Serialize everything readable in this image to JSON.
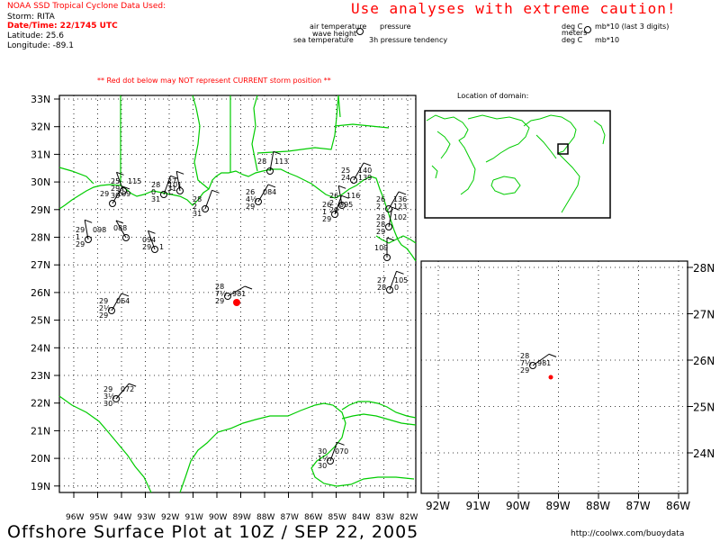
{
  "header": {
    "source_title": "NOAA SSD Tropical Cyclone Data Used:",
    "storm_line": "Storm: RITA",
    "datetime_line": "Date/Time: 22/1745 UTC",
    "latitude_line": "Latitude: 25.6",
    "longitude_line": "Longitude: -89.1",
    "caution": "Use analyses with extreme caution!",
    "red_dot_note": "** Red dot below may NOT represent CURRENT storm position **",
    "location_label": "Location of domain:",
    "footer_title": "Offshore Surface Plot at 10Z / SEP 22, 2005",
    "footer_url": "http://coolwx.com/buoydata"
  },
  "legend": {
    "air_temperature": "air temperature",
    "pressure": "pressure",
    "wave_height": "wave height",
    "sea_temperature": "sea temperature",
    "pressure_tendency": "3h pressure tendency",
    "deg_c_1": "deg C",
    "mb_note": "mb*10 (last 3 digits)",
    "meters": "meters",
    "deg_c_2": "deg C",
    "mb10": "mb*10"
  },
  "main_map": {
    "lat_labels": [
      "33N",
      "32N",
      "31N",
      "30N",
      "29N",
      "28N",
      "27N",
      "26N",
      "25N",
      "24N",
      "23N",
      "22N",
      "21N",
      "20N",
      "19N"
    ],
    "lon_labels": [
      "96W",
      "95W",
      "94W",
      "93W",
      "92W",
      "91W",
      "90W",
      "89W",
      "88W",
      "87W",
      "86W",
      "85W",
      "84W",
      "83W",
      "82W"
    ],
    "storm_dot_color": "#ff0000",
    "coast_color": "#00cc00",
    "stations": [
      {
        "lines": [
          [
            "25",
            "115"
          ],
          [
            "29",
            ""
          ],
          [
            "30",
            ""
          ]
        ]
      },
      {
        "lines": [
          [
            "29",
            "109"
          ]
        ]
      },
      {
        "lines": [
          [
            "28",
            "101"
          ],
          [
            "0",
            "C"
          ],
          [
            "31",
            ""
          ]
        ]
      },
      {
        "lines": [
          [
            "27",
            ""
          ],
          [
            "31",
            ""
          ]
        ]
      },
      {
        "lines": [
          [
            "28",
            ""
          ],
          [
            "2",
            ""
          ],
          [
            "31",
            ""
          ]
        ]
      },
      {
        "lines": [
          [
            "26",
            "084"
          ],
          [
            "4½",
            ""
          ],
          [
            "29",
            ""
          ]
        ]
      },
      {
        "lines": [
          [
            "28",
            "113"
          ]
        ]
      },
      {
        "lines": [
          [
            "29",
            "098"
          ],
          [
            "1",
            ""
          ],
          [
            "29",
            ""
          ]
        ]
      },
      {
        "lines": [
          [
            "088"
          ]
        ]
      },
      {
        "lines": [
          [
            "094"
          ],
          [
            "29",
            "1"
          ]
        ]
      },
      {
        "lines": [
          [
            "29",
            "064"
          ],
          [
            "2½",
            ""
          ],
          [
            "29",
            ""
          ]
        ]
      },
      {
        "lines": [
          [
            "28",
            ""
          ],
          [
            "7½",
            "981"
          ],
          [
            "29",
            ""
          ]
        ]
      },
      {
        "lines": [
          [
            "29",
            "072"
          ],
          [
            "3½",
            ""
          ],
          [
            "30",
            ""
          ]
        ]
      },
      {
        "lines": [
          [
            "30",
            "070"
          ],
          [
            "1½",
            ""
          ],
          [
            "30",
            ""
          ]
        ]
      },
      {
        "lines": [
          [
            "25",
            "140"
          ],
          [
            "24",
            "139"
          ]
        ]
      },
      {
        "lines": [
          [
            "26",
            "116"
          ],
          [
            "2",
            ""
          ],
          [
            "29",
            ""
          ]
        ]
      },
      {
        "lines": [
          [
            "26",
            "095"
          ],
          [
            "1",
            ""
          ],
          [
            "29",
            ""
          ]
        ]
      },
      {
        "lines": [
          [
            "26",
            "136"
          ],
          [
            "2",
            "123"
          ]
        ]
      },
      {
        "lines": [
          [
            "28",
            "102"
          ],
          [
            "28",
            ""
          ],
          [
            "29",
            ""
          ]
        ]
      },
      {
        "lines": [
          [
            "109"
          ]
        ]
      },
      {
        "lines": [
          [
            "27",
            "105"
          ],
          [
            "28",
            "0"
          ]
        ]
      }
    ]
  },
  "inset_map": {
    "lat_labels": [
      "28N",
      "27N",
      "26N",
      "25N",
      "24N"
    ],
    "lon_labels": [
      "92W",
      "91W",
      "90W",
      "89W",
      "88W",
      "87W",
      "86W"
    ],
    "station": {
      "lines": [
        [
          "28",
          ""
        ],
        [
          "7½",
          "981"
        ],
        [
          "29",
          ""
        ]
      ]
    },
    "storm_dot_color": "#ff0000"
  }
}
